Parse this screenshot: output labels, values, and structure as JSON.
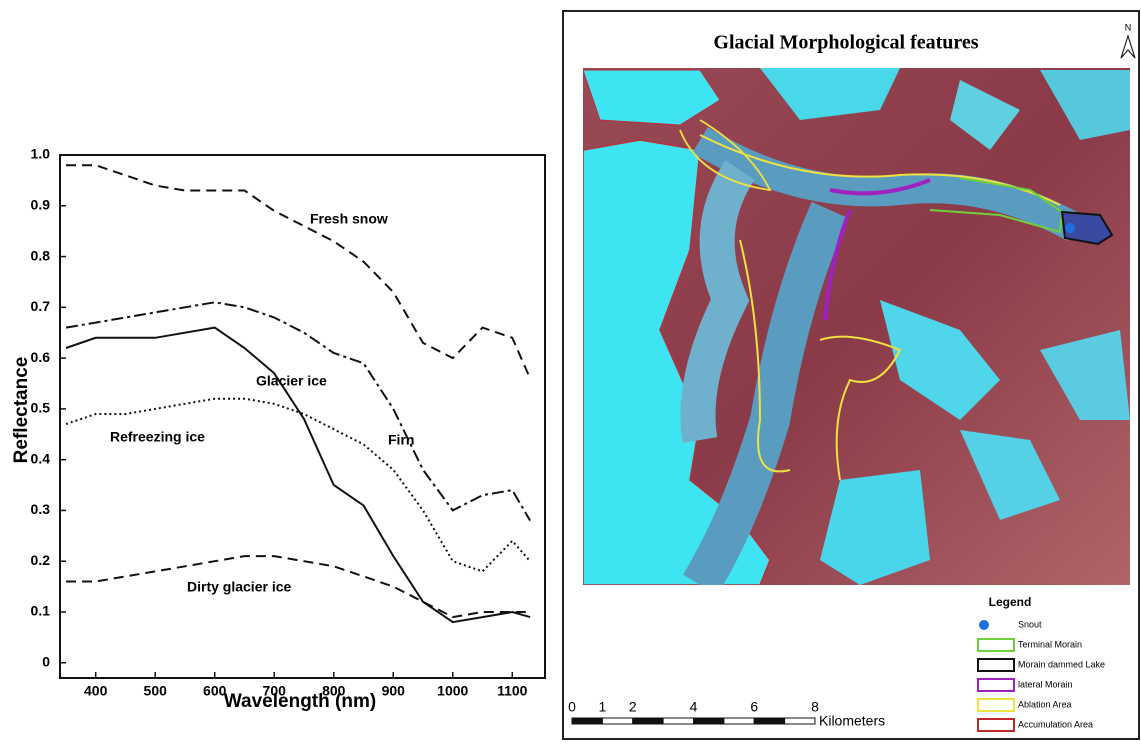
{
  "chart_data": {
    "type": "line",
    "x": [
      350,
      400,
      450,
      500,
      550,
      600,
      650,
      700,
      750,
      800,
      850,
      900,
      950,
      1000,
      1050,
      1100,
      1130
    ],
    "series": [
      {
        "name": "Fresh snow",
        "color": "#111111",
        "style": "dashed",
        "values": [
          0.98,
          0.98,
          0.96,
          0.94,
          0.93,
          0.93,
          0.93,
          0.89,
          0.86,
          0.83,
          0.79,
          0.73,
          0.63,
          0.6,
          0.66,
          0.64,
          0.56
        ]
      },
      {
        "name": "Firn",
        "color": "#111111",
        "style": "dash-dot",
        "values": [
          0.66,
          0.67,
          0.68,
          0.69,
          0.7,
          0.71,
          0.7,
          0.68,
          0.65,
          0.61,
          0.59,
          0.5,
          0.38,
          0.3,
          0.33,
          0.34,
          0.28
        ]
      },
      {
        "name": "Glacier ice",
        "color": "#111111",
        "style": "solid",
        "values": [
          0.62,
          0.64,
          0.64,
          0.64,
          0.65,
          0.66,
          0.62,
          0.57,
          0.48,
          0.35,
          0.31,
          0.21,
          0.12,
          0.08,
          0.09,
          0.1,
          0.09
        ]
      },
      {
        "name": "Refreezing ice",
        "color": "#111111",
        "style": "dotted",
        "values": [
          0.47,
          0.49,
          0.49,
          0.5,
          0.51,
          0.52,
          0.52,
          0.51,
          0.49,
          0.46,
          0.43,
          0.38,
          0.3,
          0.2,
          0.18,
          0.24,
          0.2
        ]
      },
      {
        "name": "Dirty glacier ice",
        "color": "#111111",
        "style": "dashed",
        "values": [
          0.16,
          0.16,
          0.17,
          0.18,
          0.19,
          0.2,
          0.21,
          0.21,
          0.2,
          0.19,
          0.17,
          0.15,
          0.12,
          0.09,
          0.1,
          0.1,
          0.1
        ]
      }
    ],
    "x_label": "Wavelength (nm)",
    "y_label": "Reflectance",
    "xlim": [
      340,
      1155
    ],
    "xticks": [
      400,
      500,
      600,
      700,
      800,
      900,
      1000,
      1100
    ],
    "ylim": [
      -0.03,
      1.0
    ],
    "yticks": [
      0,
      0.1,
      0.2,
      0.3,
      0.4,
      0.5,
      0.6,
      0.7,
      0.8,
      0.9,
      {
        "value": 1.0,
        "label": "1.0"
      }
    ],
    "grid": false
  },
  "map": {
    "title": "Glacial Morphological features",
    "north": "N",
    "legend": {
      "title": "Legend",
      "items": [
        {
          "label": "Snout",
          "color": "#1f6fe0"
        },
        {
          "label": "Terminal Morain",
          "color": "#6fd13a"
        },
        {
          "label": "Morain dammed Lake",
          "color": "#111111"
        },
        {
          "label": "lateral Morain",
          "color": "#a020c0"
        },
        {
          "label": "Ablation Area",
          "color": "#f0e040"
        },
        {
          "label": "Accumulation Area",
          "color": "#c02828"
        }
      ]
    },
    "scale": {
      "labels": [
        0,
        1,
        2,
        4,
        6,
        8
      ],
      "unit": "Kilometers"
    }
  }
}
